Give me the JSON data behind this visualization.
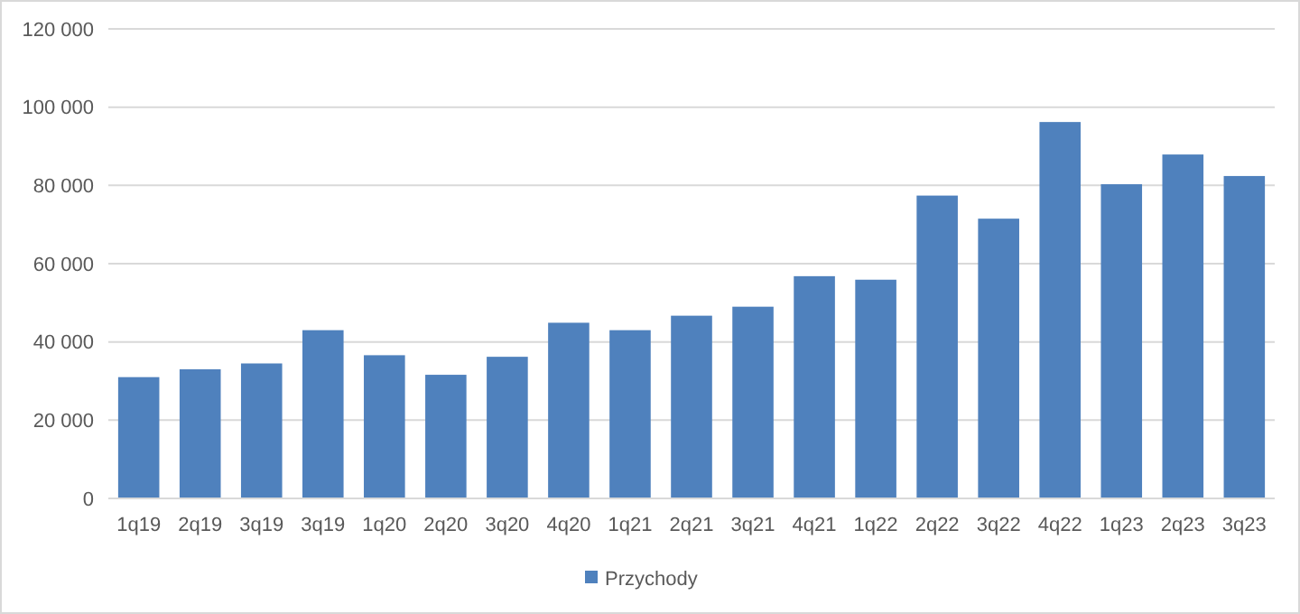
{
  "chart_data": {
    "type": "bar",
    "categories": [
      "1q19",
      "2q19",
      "3q19",
      "3q19",
      "1q20",
      "2q20",
      "3q20",
      "4q20",
      "1q21",
      "2q21",
      "3q21",
      "4q21",
      "1q22",
      "2q22",
      "3q22",
      "4q22",
      "1q23",
      "2q23",
      "3q23"
    ],
    "series": [
      {
        "name": "Przychody",
        "color": "#4f81bd",
        "values": [
          31000,
          33000,
          34500,
          43000,
          36600,
          31600,
          36200,
          44900,
          43000,
          46700,
          49000,
          56800,
          55900,
          77400,
          71500,
          96200,
          80300,
          87900,
          82400
        ]
      }
    ],
    "ylim": [
      0,
      120000
    ],
    "yticks": [
      {
        "value": 0,
        "label": "0"
      },
      {
        "value": 20000,
        "label": "20 000"
      },
      {
        "value": 40000,
        "label": "40 000"
      },
      {
        "value": 60000,
        "label": "60 000"
      },
      {
        "value": 80000,
        "label": "80 000"
      },
      {
        "value": 100000,
        "label": "100 000"
      },
      {
        "value": 120000,
        "label": "120 000"
      }
    ],
    "grid": "y",
    "legend": "bottom"
  }
}
